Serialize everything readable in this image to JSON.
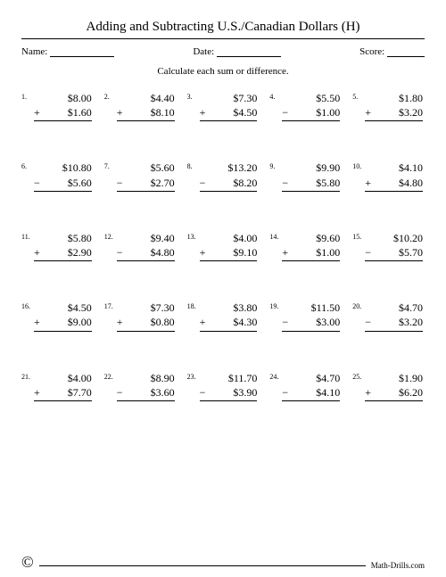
{
  "title": "Adding and Subtracting U.S./Canadian Dollars (H)",
  "meta": {
    "name_label": "Name:",
    "date_label": "Date:",
    "score_label": "Score:",
    "name_blank_w": 72,
    "date_blank_w": 72,
    "score_blank_w": 42
  },
  "instruction": "Calculate each sum or difference.",
  "footer": {
    "copyright": "©",
    "site": "Math-Drills.com"
  },
  "problems": [
    {
      "n": "1.",
      "a": "$8.00",
      "op": "+",
      "b": "$1.60"
    },
    {
      "n": "2.",
      "a": "$4.40",
      "op": "+",
      "b": "$8.10"
    },
    {
      "n": "3.",
      "a": "$7.30",
      "op": "+",
      "b": "$4.50"
    },
    {
      "n": "4.",
      "a": "$5.50",
      "op": "−",
      "b": "$1.00"
    },
    {
      "n": "5.",
      "a": "$1.80",
      "op": "+",
      "b": "$3.20"
    },
    {
      "n": "6.",
      "a": "$10.80",
      "op": "−",
      "b": "$5.60"
    },
    {
      "n": "7.",
      "a": "$5.60",
      "op": "−",
      "b": "$2.70"
    },
    {
      "n": "8.",
      "a": "$13.20",
      "op": "−",
      "b": "$8.20"
    },
    {
      "n": "9.",
      "a": "$9.90",
      "op": "−",
      "b": "$5.80"
    },
    {
      "n": "10.",
      "a": "$4.10",
      "op": "+",
      "b": "$4.80"
    },
    {
      "n": "11.",
      "a": "$5.80",
      "op": "+",
      "b": "$2.90"
    },
    {
      "n": "12.",
      "a": "$9.40",
      "op": "−",
      "b": "$4.80"
    },
    {
      "n": "13.",
      "a": "$4.00",
      "op": "+",
      "b": "$9.10"
    },
    {
      "n": "14.",
      "a": "$9.60",
      "op": "+",
      "b": "$1.00"
    },
    {
      "n": "15.",
      "a": "$10.20",
      "op": "−",
      "b": "$5.70"
    },
    {
      "n": "16.",
      "a": "$4.50",
      "op": "+",
      "b": "$9.00"
    },
    {
      "n": "17.",
      "a": "$7.30",
      "op": "+",
      "b": "$0.80"
    },
    {
      "n": "18.",
      "a": "$3.80",
      "op": "+",
      "b": "$4.30"
    },
    {
      "n": "19.",
      "a": "$11.50",
      "op": "−",
      "b": "$3.00"
    },
    {
      "n": "20.",
      "a": "$4.70",
      "op": "−",
      "b": "$3.20"
    },
    {
      "n": "21.",
      "a": "$4.00",
      "op": "+",
      "b": "$7.70"
    },
    {
      "n": "22.",
      "a": "$8.90",
      "op": "−",
      "b": "$3.60"
    },
    {
      "n": "23.",
      "a": "$11.70",
      "op": "−",
      "b": "$3.90"
    },
    {
      "n": "24.",
      "a": "$4.70",
      "op": "−",
      "b": "$4.10"
    },
    {
      "n": "25.",
      "a": "$1.90",
      "op": "+",
      "b": "$6.20"
    }
  ]
}
